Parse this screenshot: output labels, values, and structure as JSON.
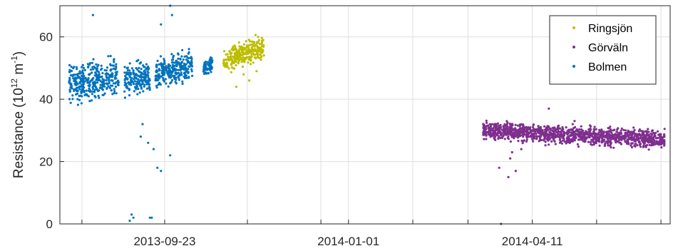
{
  "chart_data": {
    "type": "scatter",
    "title": "",
    "xlabel": "",
    "ylabel": "Resistance (10^12 m^-1)",
    "ylabel_parts": {
      "base": "Resistance (10",
      "exp1": "12",
      "mid": " m",
      "exp2": "-1",
      "end": ")"
    },
    "xlim": [
      "2013-07-28",
      "2014-06-25"
    ],
    "ylim": [
      0,
      70
    ],
    "x_ticks": [
      "2013-08-09",
      "2013-09-23",
      "2013-11-07",
      "2013-12-17",
      "2014-01-01",
      "2014-02-05",
      "2014-03-07",
      "2014-04-11",
      "2014-05-16",
      "2014-06-20"
    ],
    "x_tick_labels": [
      {
        "date": "2013-09-23",
        "label": "2013-09-23"
      },
      {
        "date": "2014-01-01",
        "label": "2014-01-01"
      },
      {
        "date": "2014-04-11",
        "label": "2014-04-11"
      }
    ],
    "y_ticks": [
      0,
      20,
      40,
      60
    ],
    "grid": true,
    "legend_position": "top-right",
    "series": [
      {
        "name": "Ringsjön",
        "color": "#bdbd00",
        "segments": [
          {
            "start": "2013-10-25",
            "end": "2013-11-16",
            "from": 52,
            "to": 57,
            "spread": 4
          }
        ],
        "outliers": [
          {
            "x": "2013-11-01",
            "y": 44
          },
          {
            "x": "2013-11-05",
            "y": 48
          },
          {
            "x": "2013-11-08",
            "y": 46
          },
          {
            "x": "2013-11-12",
            "y": 49
          }
        ]
      },
      {
        "name": "Görväln",
        "color": "#7e2f8e",
        "segments": [
          {
            "start": "2014-03-15",
            "end": "2014-06-22",
            "from": 30,
            "to": 27,
            "spread": 3
          }
        ],
        "outliers": [
          {
            "x": "2014-03-24",
            "y": 18
          },
          {
            "x": "2014-03-25",
            "y": 0
          },
          {
            "x": "2014-03-29",
            "y": 15
          },
          {
            "x": "2014-03-30",
            "y": 21
          },
          {
            "x": "2014-03-31",
            "y": 23
          },
          {
            "x": "2014-04-02",
            "y": 17
          },
          {
            "x": "2014-04-05",
            "y": 24
          },
          {
            "x": "2014-04-20",
            "y": 37
          },
          {
            "x": "2014-05-03",
            "y": 32
          },
          {
            "x": "2014-05-04",
            "y": 33
          }
        ]
      },
      {
        "name": "Bolmen",
        "color": "#0072bd",
        "segments": [
          {
            "start": "2013-08-02",
            "end": "2013-08-29",
            "from": 45,
            "to": 47,
            "spread": 6
          },
          {
            "start": "2013-09-01",
            "end": "2013-09-15",
            "from": 46,
            "to": 47,
            "spread": 5
          },
          {
            "start": "2013-09-18",
            "end": "2013-10-08",
            "from": 48,
            "to": 51,
            "spread": 5
          },
          {
            "start": "2013-10-14",
            "end": "2013-10-19",
            "from": 50,
            "to": 51,
            "spread": 3
          }
        ],
        "outliers": [
          {
            "x": "2013-08-15",
            "y": 67
          },
          {
            "x": "2013-09-04",
            "y": 1
          },
          {
            "x": "2013-09-05",
            "y": 3
          },
          {
            "x": "2013-09-06",
            "y": 2
          },
          {
            "x": "2013-09-10",
            "y": 28
          },
          {
            "x": "2013-09-11",
            "y": 32
          },
          {
            "x": "2013-09-14",
            "y": 26
          },
          {
            "x": "2013-09-15",
            "y": 2
          },
          {
            "x": "2013-09-16",
            "y": 2
          },
          {
            "x": "2013-09-17",
            "y": 24
          },
          {
            "x": "2013-09-19",
            "y": 18
          },
          {
            "x": "2013-09-21",
            "y": 17
          },
          {
            "x": "2013-09-21",
            "y": 64
          },
          {
            "x": "2013-09-26",
            "y": 70
          },
          {
            "x": "2013-09-26",
            "y": 22
          },
          {
            "x": "2013-09-27",
            "y": 67
          }
        ]
      }
    ]
  }
}
